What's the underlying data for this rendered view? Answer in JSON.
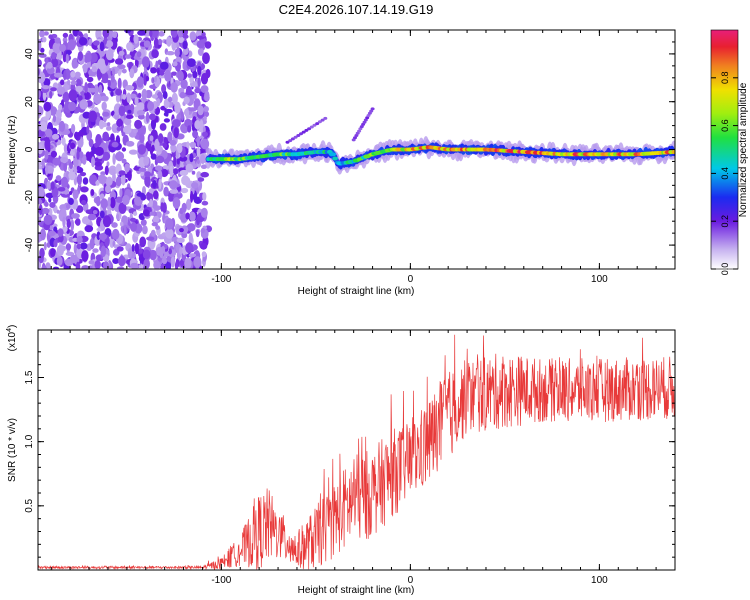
{
  "title": "C2E4.2026.107.14.19.G19",
  "chart_data": [
    {
      "type": "heatmap",
      "title": "C2E4.2026.107.14.19.G19",
      "xlabel": "Height of straight line (km)",
      "ylabel": "Frequency (Hz)",
      "xlim": [
        -197,
        140
      ],
      "ylim": [
        -50,
        50
      ],
      "x_ticks": [
        -100,
        0,
        100
      ],
      "x_tick_labels": [
        "-100",
        "0",
        "100"
      ],
      "y_ticks": [
        -40,
        -20,
        0,
        20,
        40
      ],
      "y_tick_labels": [
        "-40",
        "-20",
        "0",
        "20",
        "40"
      ],
      "noise_region_x": [
        -197,
        -107
      ],
      "main_track": {
        "x": [
          -107,
          -100,
          -90,
          -80,
          -70,
          -60,
          -50,
          -42,
          -38,
          -30,
          -20,
          -10,
          0,
          10,
          20,
          40,
          60,
          80,
          100,
          120,
          140
        ],
        "y": [
          -4,
          -4,
          -4,
          -3,
          -2,
          -2,
          -1,
          -1,
          -6,
          -5,
          -2,
          0,
          0,
          1,
          0,
          0,
          -1,
          -2,
          -2,
          -2,
          -1
        ],
        "amplitude": [
          0.55,
          0.75,
          0.6,
          0.55,
          0.6,
          0.55,
          0.5,
          0.5,
          0.45,
          0.55,
          0.65,
          0.75,
          0.8,
          0.85,
          0.85,
          0.9,
          0.9,
          0.9,
          0.85,
          0.9,
          0.85
        ]
      },
      "faint_tracks": [
        {
          "x": [
            -65,
            -45
          ],
          "y": [
            3,
            13
          ]
        },
        {
          "x": [
            -30,
            -20
          ],
          "y": [
            4,
            17
          ]
        }
      ],
      "colorbar": {
        "label": "Normalized spectral amplitude",
        "range": [
          0,
          1
        ],
        "ticks": [
          0.0,
          0.2,
          0.4,
          0.6,
          0.8
        ],
        "tick_labels": [
          "0.0",
          "0.2",
          "0.4",
          "0.6",
          "0.8"
        ]
      }
    },
    {
      "type": "line",
      "xlabel": "Height of straight line (km)",
      "ylabel": "SNR (10 * v/v)",
      "y_multiplier_label": "(x10",
      "y_multiplier_exponent": "4",
      "y_multiplier_close": ")",
      "xlim": [
        -197,
        140
      ],
      "ylim": [
        0,
        1.87
      ],
      "x_ticks": [
        -100,
        0,
        100
      ],
      "x_tick_labels": [
        "-100",
        "0",
        "100"
      ],
      "y_ticks": [
        0.5,
        1.0,
        1.5
      ],
      "y_tick_labels": [
        "0.5",
        "1.0",
        "1.5"
      ],
      "series": [
        {
          "name": "SNR",
          "color": "#e83a3a",
          "envelope_x": [
            -197,
            -110,
            -100,
            -90,
            -80,
            -75,
            -70,
            -60,
            -50,
            -40,
            -30,
            -20,
            -10,
            0,
            10,
            20,
            30,
            50,
            70,
            100,
            140
          ],
          "envelope_mean": [
            0.02,
            0.02,
            0.05,
            0.15,
            0.3,
            0.35,
            0.28,
            0.15,
            0.25,
            0.4,
            0.55,
            0.6,
            0.75,
            0.85,
            1.0,
            1.2,
            1.35,
            1.4,
            1.4,
            1.4,
            1.42
          ],
          "envelope_spread": [
            0.01,
            0.01,
            0.05,
            0.12,
            0.3,
            0.3,
            0.2,
            0.15,
            0.25,
            0.3,
            0.35,
            0.35,
            0.35,
            0.3,
            0.35,
            0.35,
            0.3,
            0.3,
            0.25,
            0.25,
            0.25
          ]
        }
      ]
    }
  ]
}
